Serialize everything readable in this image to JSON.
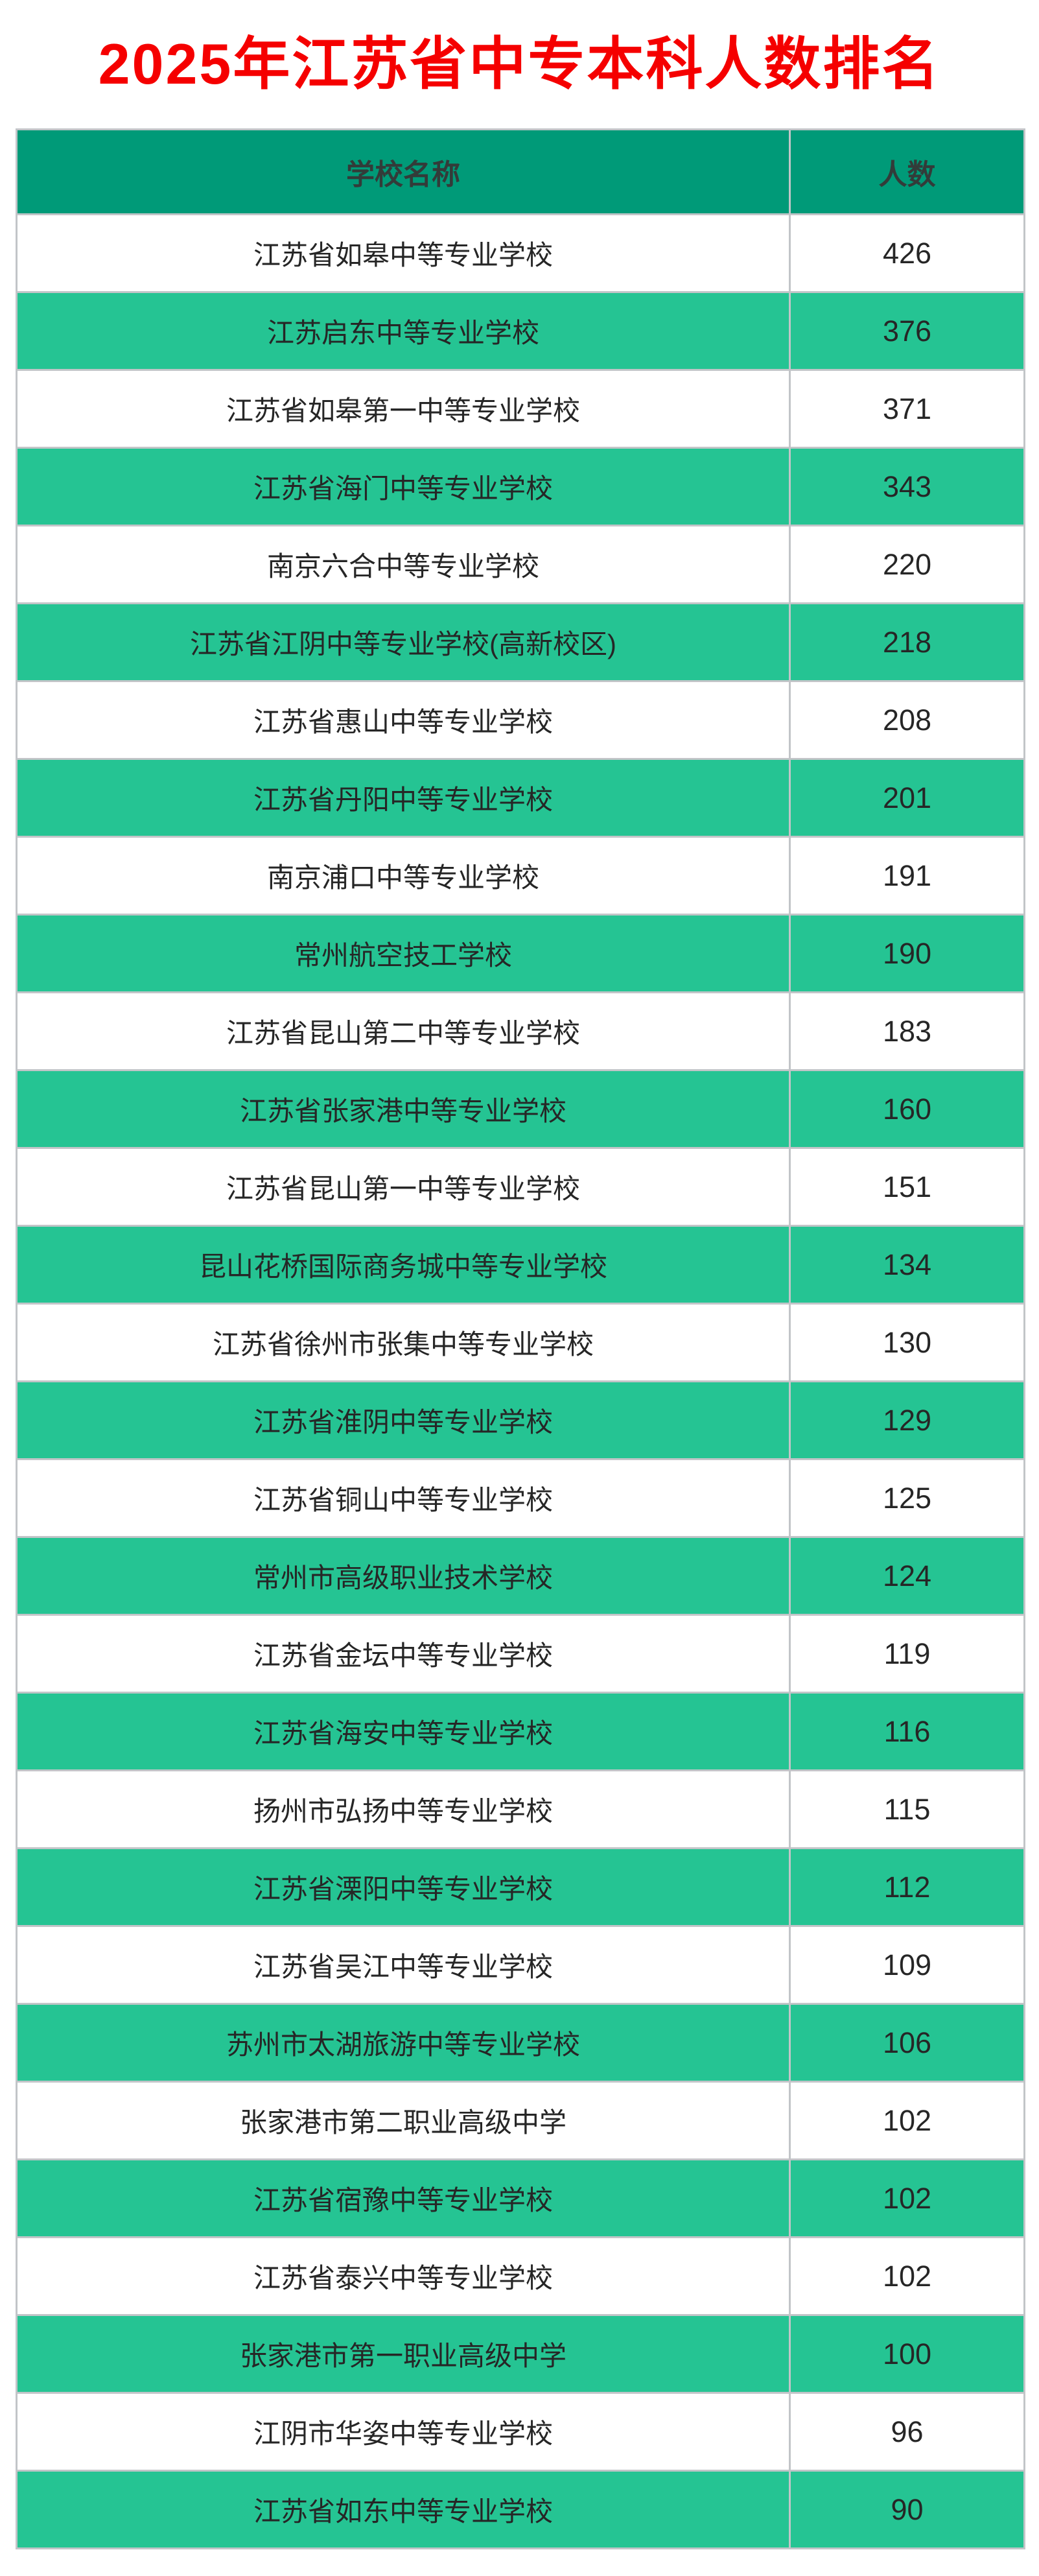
{
  "title": "2025年江苏省中专本科人数排名",
  "colors": {
    "title": "#f50000",
    "header_bg": "#009a78",
    "header_text": "#333b39",
    "row_green": "#25c493",
    "row_white": "#ffffff",
    "border": "#c2c5c8",
    "row_text": "#262626"
  },
  "table": {
    "headers": {
      "school": "学校名称",
      "count": "人数"
    },
    "rows": [
      {
        "school": "江苏省如皋中等专业学校",
        "count": "426"
      },
      {
        "school": "江苏启东中等专业学校",
        "count": "376"
      },
      {
        "school": "江苏省如皋第一中等专业学校",
        "count": "371"
      },
      {
        "school": "江苏省海门中等专业学校",
        "count": "343"
      },
      {
        "school": "南京六合中等专业学校",
        "count": "220"
      },
      {
        "school": "江苏省江阴中等专业学校(高新校区)",
        "count": "218"
      },
      {
        "school": "江苏省惠山中等专业学校",
        "count": "208"
      },
      {
        "school": "江苏省丹阳中等专业学校",
        "count": "201"
      },
      {
        "school": "南京浦口中等专业学校",
        "count": "191"
      },
      {
        "school": "常州航空技工学校",
        "count": "190"
      },
      {
        "school": "江苏省昆山第二中等专业学校",
        "count": "183"
      },
      {
        "school": "江苏省张家港中等专业学校",
        "count": "160"
      },
      {
        "school": "江苏省昆山第一中等专业学校",
        "count": "151"
      },
      {
        "school": "昆山花桥国际商务城中等专业学校",
        "count": "134"
      },
      {
        "school": "江苏省徐州市张集中等专业学校",
        "count": "130"
      },
      {
        "school": "江苏省淮阴中等专业学校",
        "count": "129"
      },
      {
        "school": "江苏省铜山中等专业学校",
        "count": "125"
      },
      {
        "school": "常州市高级职业技术学校",
        "count": "124"
      },
      {
        "school": "江苏省金坛中等专业学校",
        "count": "119"
      },
      {
        "school": "江苏省海安中等专业学校",
        "count": "116"
      },
      {
        "school": "扬州市弘扬中等专业学校",
        "count": "115"
      },
      {
        "school": "江苏省溧阳中等专业学校",
        "count": "112"
      },
      {
        "school": "江苏省吴江中等专业学校",
        "count": "109"
      },
      {
        "school": "苏州市太湖旅游中等专业学校",
        "count": "106"
      },
      {
        "school": "张家港市第二职业高级中学",
        "count": "102"
      },
      {
        "school": "江苏省宿豫中等专业学校",
        "count": "102"
      },
      {
        "school": "江苏省泰兴中等专业学校",
        "count": "102"
      },
      {
        "school": "张家港市第一职业高级中学",
        "count": "100"
      },
      {
        "school": "江阴市华姿中等专业学校",
        "count": "96"
      },
      {
        "school": "江苏省如东中等专业学校",
        "count": "90"
      }
    ]
  },
  "chart_data": {
    "type": "table",
    "title": "2025年江苏省中专本科人数排名",
    "columns": [
      "学校名称",
      "人数"
    ],
    "categories": [
      "江苏省如皋中等专业学校",
      "江苏启东中等专业学校",
      "江苏省如皋第一中等专业学校",
      "江苏省海门中等专业学校",
      "南京六合中等专业学校",
      "江苏省江阴中等专业学校(高新校区)",
      "江苏省惠山中等专业学校",
      "江苏省丹阳中等专业学校",
      "南京浦口中等专业学校",
      "常州航空技工学校",
      "江苏省昆山第二中等专业学校",
      "江苏省张家港中等专业学校",
      "江苏省昆山第一中等专业学校",
      "昆山花桥国际商务城中等专业学校",
      "江苏省徐州市张集中等专业学校",
      "江苏省淮阴中等专业学校",
      "江苏省铜山中等专业学校",
      "常州市高级职业技术学校",
      "江苏省金坛中等专业学校",
      "江苏省海安中等专业学校",
      "扬州市弘扬中等专业学校",
      "江苏省溧阳中等专业学校",
      "江苏省吴江中等专业学校",
      "苏州市太湖旅游中等专业学校",
      "张家港市第二职业高级中学",
      "江苏省宿豫中等专业学校",
      "江苏省泰兴中等专业学校",
      "张家港市第一职业高级中学",
      "江阴市华姿中等专业学校",
      "江苏省如东中等专业学校"
    ],
    "values": [
      426,
      376,
      371,
      343,
      220,
      218,
      208,
      201,
      191,
      190,
      183,
      160,
      151,
      134,
      130,
      129,
      125,
      124,
      119,
      116,
      115,
      112,
      109,
      106,
      102,
      102,
      102,
      100,
      96,
      90
    ]
  }
}
